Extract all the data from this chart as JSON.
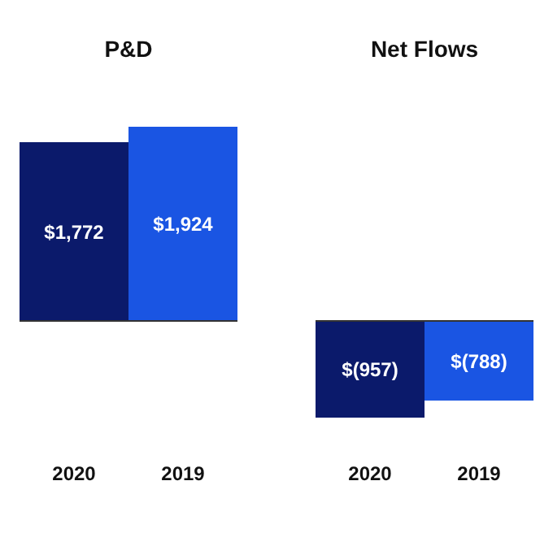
{
  "chart_data": [
    {
      "type": "bar",
      "title": "P&D",
      "categories": [
        "2020",
        "2019"
      ],
      "values": [
        1772,
        1924
      ],
      "colors": [
        "#0b1a6b",
        "#1a55e3"
      ],
      "value_labels": [
        "$1,772",
        "$1,924"
      ]
    },
    {
      "type": "bar",
      "title": "Net Flows",
      "categories": [
        "2020",
        "2019"
      ],
      "values": [
        -957,
        -788
      ],
      "colors": [
        "#0b1a6b",
        "#1a55e3"
      ],
      "value_labels": [
        "$(957)",
        "$(788)"
      ]
    }
  ]
}
